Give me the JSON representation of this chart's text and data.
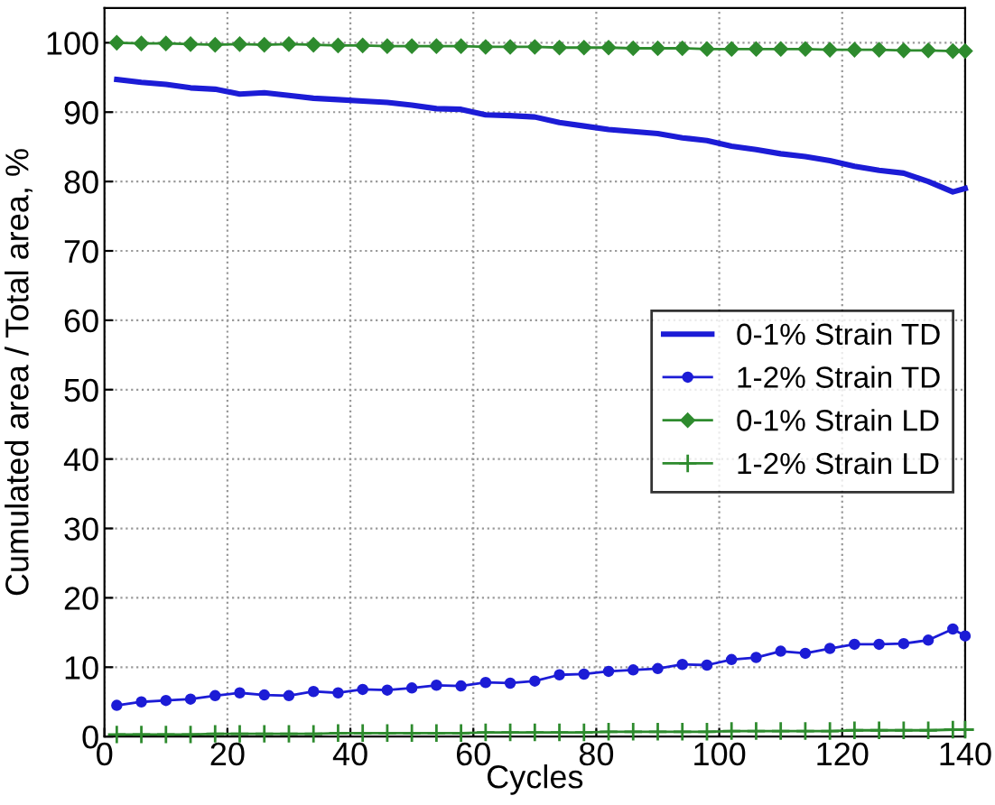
{
  "chart_data": {
    "type": "line",
    "xlabel": "Cycles",
    "ylabel": "Cumulated area / Total area, %",
    "xlim": [
      0,
      140
    ],
    "ylim": [
      0,
      105
    ],
    "xticks": [
      0,
      20,
      40,
      60,
      80,
      100,
      120,
      140
    ],
    "yticks": [
      0,
      10,
      20,
      30,
      40,
      50,
      60,
      70,
      80,
      90,
      100
    ],
    "grid": true,
    "legend": "right",
    "line_style": "solid",
    "x": [
      2,
      6,
      10,
      14,
      18,
      22,
      26,
      30,
      34,
      38,
      42,
      46,
      50,
      54,
      58,
      62,
      66,
      70,
      74,
      78,
      82,
      86,
      90,
      94,
      98,
      102,
      106,
      110,
      114,
      118,
      122,
      126,
      130,
      134,
      138,
      140
    ],
    "series": [
      {
        "name": "0-1% Strain TD",
        "color": "#1c1cd6",
        "marker": "none",
        "values": [
          94.7,
          94.3,
          94.0,
          93.5,
          93.3,
          92.6,
          92.8,
          92.4,
          92.0,
          91.8,
          91.6,
          91.4,
          91.0,
          90.5,
          90.4,
          89.6,
          89.5,
          89.3,
          88.5,
          88.0,
          87.5,
          87.2,
          86.9,
          86.3,
          85.9,
          85.1,
          84.6,
          84.0,
          83.6,
          83.0,
          82.2,
          81.6,
          81.2,
          80.0,
          78.5,
          79.0
        ]
      },
      {
        "name": "1-2% Strain TD",
        "color": "#1c1cd6",
        "marker": "circle",
        "values": [
          4.5,
          5.0,
          5.2,
          5.4,
          5.9,
          6.3,
          6.0,
          5.9,
          6.5,
          6.3,
          6.8,
          6.7,
          7.0,
          7.4,
          7.3,
          7.8,
          7.7,
          8.0,
          8.9,
          9.0,
          9.4,
          9.6,
          9.8,
          10.4,
          10.3,
          11.1,
          11.4,
          12.3,
          12.0,
          12.7,
          13.3,
          13.3,
          13.4,
          13.9,
          15.5,
          14.5
        ]
      },
      {
        "name": "0-1% Strain LD",
        "color": "#2e8b2e",
        "marker": "diamond",
        "values": [
          100,
          99.9,
          99.9,
          99.8,
          99.7,
          99.8,
          99.7,
          99.8,
          99.7,
          99.6,
          99.6,
          99.5,
          99.5,
          99.5,
          99.5,
          99.4,
          99.4,
          99.4,
          99.3,
          99.3,
          99.3,
          99.2,
          99.2,
          99.2,
          99.1,
          99.1,
          99.1,
          99.1,
          99.1,
          99.0,
          99.0,
          99.0,
          98.9,
          98.9,
          98.8,
          98.8
        ]
      },
      {
        "name": "1-2% Strain LD",
        "color": "#2e8b2e",
        "marker": "cross",
        "values": [
          0.3,
          0.3,
          0.3,
          0.3,
          0.4,
          0.4,
          0.4,
          0.4,
          0.4,
          0.5,
          0.5,
          0.5,
          0.5,
          0.5,
          0.5,
          0.6,
          0.6,
          0.6,
          0.6,
          0.6,
          0.7,
          0.7,
          0.7,
          0.7,
          0.7,
          0.8,
          0.8,
          0.8,
          0.8,
          0.8,
          0.9,
          0.9,
          0.9,
          0.9,
          1.0,
          1.0
        ]
      }
    ]
  }
}
